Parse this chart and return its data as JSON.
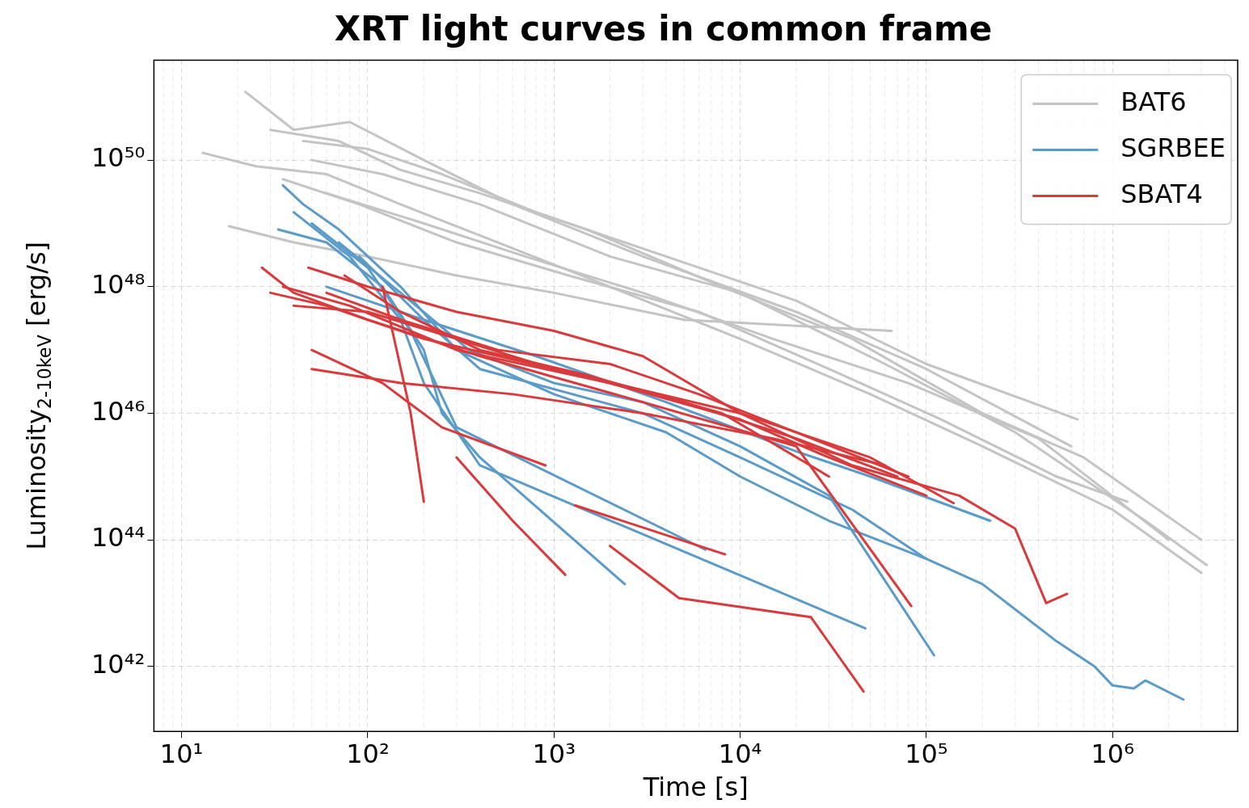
{
  "chart_data": {
    "type": "line",
    "title": "XRT light curves in common frame",
    "xlabel": "Time [s]",
    "ylabel": "Luminosity$_{2-10keV}$ [erg/s]",
    "log": "xy",
    "grid": true,
    "legend": "top right",
    "marker": "none",
    "line_style": "solid",
    "xlim": [
      7.1,
      4700000.0
    ],
    "ylim": [
      9.4e+40,
      3.8e+51
    ],
    "xticks": [
      {
        "value": 10,
        "label": "10¹"
      },
      {
        "value": 100,
        "label": "10²"
      },
      {
        "value": 1000,
        "label": "10³"
      },
      {
        "value": 10000,
        "label": "10⁴"
      },
      {
        "value": 100000,
        "label": "10⁵"
      },
      {
        "value": 1000000,
        "label": "10⁶"
      }
    ],
    "yticks": [
      {
        "value": 1e+42,
        "label": "10⁴²"
      },
      {
        "value": 1e+44,
        "label": "10⁴⁴"
      },
      {
        "value": 1e+46,
        "label": "10⁴⁶"
      },
      {
        "value": 1e+48,
        "label": "10⁴⁸"
      },
      {
        "value": 1e+50,
        "label": "10⁵⁰"
      }
    ],
    "series": [
      {
        "name": "BAT6",
        "color": "#c4c4c4",
        "x": [
          13,
          25,
          60,
          150,
          500,
          2000,
          10000,
          50000,
          200000,
          1000000,
          3000000
        ],
        "values": [
          1.3e+50,
          8e+49,
          6e+49,
          2e+49,
          5e+48,
          1e+48,
          1.5e+47,
          2e+46,
          3e+45,
          3e+44,
          3e+43
        ]
      },
      {
        "color": "#c4c4c4",
        "x": [
          22,
          40,
          80,
          200,
          600,
          3000,
          20000,
          100000,
          600000
        ],
        "values": [
          1.2e+51,
          3e+50,
          4e+50,
          1e+50,
          2e+49,
          3e+48,
          4e+47,
          5e+46,
          3e+45
        ]
      },
      {
        "color": "#c4c4c4",
        "x": [
          18,
          40,
          100,
          300,
          1000,
          5000,
          65000
        ],
        "values": [
          9e+48,
          5e+48,
          3e+48,
          1.5e+48,
          8e+47,
          3e+47,
          2e+47
        ]
      },
      {
        "color": "#c4c4c4",
        "x": [
          30,
          70,
          150,
          400,
          1500,
          8000,
          40000,
          200000,
          700000,
          3000000
        ],
        "values": [
          3e+50,
          2e+50,
          7e+49,
          3e+49,
          8e+48,
          1e+48,
          1.5e+47,
          1e+46,
          2e+45,
          1e+44
        ]
      },
      {
        "color": "#c4c4c4",
        "x": [
          50,
          120,
          400,
          2000,
          10000,
          60000,
          300000,
          1500000,
          3200000
        ],
        "values": [
          1e+50,
          6e+49,
          2e+49,
          3e+48,
          8e+47,
          6e+46,
          5e+45,
          2e+44,
          4e+43
        ]
      },
      {
        "color": "#c4c4c4",
        "x": [
          35,
          90,
          300,
          1200,
          6000,
          30000,
          120000,
          500000,
          1200000
        ],
        "values": [
          5e+49,
          2e+49,
          5e+48,
          1.5e+48,
          4e+47,
          5e+46,
          8e+45,
          1e+45,
          4e+44
        ]
      },
      {
        "color": "#c4c4c4",
        "x": [
          45,
          100,
          250,
          800,
          3000,
          20000,
          100000,
          650000
        ],
        "values": [
          2e+50,
          1.5e+50,
          6e+49,
          1.5e+49,
          4e+48,
          6e+47,
          6e+46,
          8e+45
        ]
      },
      {
        "color": "#c4c4c4",
        "x": [
          60,
          200,
          700,
          3000,
          15000,
          80000,
          400000,
          2000000
        ],
        "values": [
          3e+49,
          1e+49,
          3e+48,
          8e+47,
          1.5e+47,
          3e+46,
          4e+45,
          1e+44
        ]
      },
      {
        "name": "SGRBEE",
        "color": "#5b9bc9",
        "x": [
          35,
          45,
          70,
          150,
          300,
          1000,
          4000,
          10000,
          30000,
          100000,
          200000,
          500000,
          800000,
          1000000,
          1300000,
          1500000,
          2400000
        ],
        "values": [
          4e+49,
          2e+49,
          8e+48,
          1e+48,
          1e+47,
          2e+46,
          5e+45,
          1e+45,
          2e+44,
          5e+43,
          2e+43,
          2.5e+42,
          1e+42,
          5e+41,
          4.5e+41,
          6e+41,
          3e+41
        ]
      },
      {
        "color": "#5b9bc9",
        "x": [
          33,
          60,
          120,
          200,
          250,
          400,
          2400
        ],
        "values": [
          8e+48,
          5e+48,
          1e+48,
          1e+47,
          1e+46,
          2e+45,
          2e+43
        ]
      },
      {
        "color": "#5b9bc9",
        "x": [
          40,
          80,
          150,
          200,
          400,
          47000
        ],
        "values": [
          1.5e+49,
          3e+48,
          3e+47,
          3e+46,
          1.5e+45,
          4e+42
        ]
      },
      {
        "color": "#5b9bc9",
        "x": [
          50,
          100,
          170,
          300,
          6500
        ],
        "values": [
          1e+49,
          2e+48,
          2e+47,
          6e+45,
          7e+43
        ]
      },
      {
        "color": "#5b9bc9",
        "x": [
          70,
          150,
          350,
          1000,
          3000,
          10000,
          30000,
          110000
        ],
        "values": [
          5e+48,
          8e+47,
          1e+47,
          3e+46,
          1.5e+46,
          3e+45,
          5e+44,
          1.5e+42
        ]
      },
      {
        "color": "#5b9bc9",
        "x": [
          60,
          200,
          800,
          4000,
          20000,
          50000,
          220000
        ],
        "values": [
          1e+48,
          3e+47,
          8e+46,
          1.5e+46,
          2.5e+45,
          1e+45,
          2e+44
        ]
      },
      {
        "color": "#5b9bc9",
        "x": [
          90,
          200,
          400,
          3000,
          10000,
          40000,
          100000
        ],
        "values": [
          3e+48,
          3e+47,
          5e+46,
          1e+46,
          2e+45,
          3e+44,
          5e+43
        ]
      },
      {
        "name": "SBAT4",
        "color": "#d93a3b",
        "x": [
          27,
          40,
          100,
          400,
          3000,
          20000,
          83000
        ],
        "values": [
          2e+48,
          8e+47,
          3e+47,
          8e+46,
          1.5e+46,
          3e+45,
          9e+42
        ]
      },
      {
        "color": "#d93a3b",
        "x": [
          30,
          60,
          200,
          1000,
          10000,
          50000,
          140000
        ],
        "values": [
          8e+47,
          5e+47,
          1.5e+47,
          5e+46,
          1e+46,
          2e+45,
          3.8e+44
        ]
      },
      {
        "color": "#d93a3b",
        "x": [
          48,
          100,
          300,
          1000,
          3000,
          10000,
          40000,
          150000,
          300000,
          440000,
          570000
        ],
        "values": [
          2e+48,
          1e+48,
          4e+47,
          2e+47,
          8e+46,
          1e+46,
          1.5e+45,
          5e+44,
          1.5e+44,
          1e+43,
          1.4e+43
        ]
      },
      {
        "color": "#d93a3b",
        "x": [
          50,
          120,
          250,
          900
        ],
        "values": [
          1e+47,
          3e+46,
          6e+45,
          1.5e+45
        ]
      },
      {
        "color": "#d93a3b",
        "x": [
          120,
          170,
          200
        ],
        "values": [
          1e+48,
          1e+46,
          4e+44
        ]
      },
      {
        "color": "#d93a3b",
        "x": [
          300,
          600,
          1150
        ],
        "values": [
          2e+45,
          2e+44,
          2.8e+43
        ]
      },
      {
        "color": "#d93a3b",
        "x": [
          1300,
          8300
        ],
        "values": [
          3.5e+44,
          5.9e+43
        ]
      },
      {
        "color": "#d93a3b",
        "x": [
          2000,
          4700,
          24000,
          46000
        ],
        "values": [
          8e+43,
          1.2e+43,
          6e+42,
          4e+41
        ]
      },
      {
        "color": "#d93a3b",
        "x": [
          35,
          80,
          300,
          2000,
          10000,
          30000,
          100000
        ],
        "values": [
          1e+48,
          5e+47,
          1e+47,
          3e+46,
          8e+45,
          2e+45,
          5e+44
        ]
      },
      {
        "color": "#d93a3b",
        "x": [
          50,
          150,
          600,
          3000,
          15000,
          60000
        ],
        "values": [
          5e+46,
          3e+46,
          2e+46,
          1e+46,
          4e+45,
          1.5e+45
        ]
      },
      {
        "color": "#d93a3b",
        "x": [
          60,
          150,
          500,
          2000,
          6000,
          20000,
          80000
        ],
        "values": [
          8e+47,
          3e+47,
          1e+47,
          6e+46,
          2e+46,
          5e+45,
          1e+45
        ]
      },
      {
        "color": "#d93a3b",
        "x": [
          40,
          100,
          300,
          1000,
          5000,
          20000,
          70000
        ],
        "values": [
          5e+47,
          4e+47,
          1.5e+47,
          5e+46,
          1.5e+46,
          4e+45,
          1e+45
        ]
      },
      {
        "color": "#d93a3b",
        "x": [
          75,
          150,
          400,
          1500,
          8000,
          30000
        ],
        "values": [
          1.5e+48,
          4e+47,
          1e+47,
          4e+46,
          1e+46,
          1e+45
        ]
      }
    ]
  }
}
